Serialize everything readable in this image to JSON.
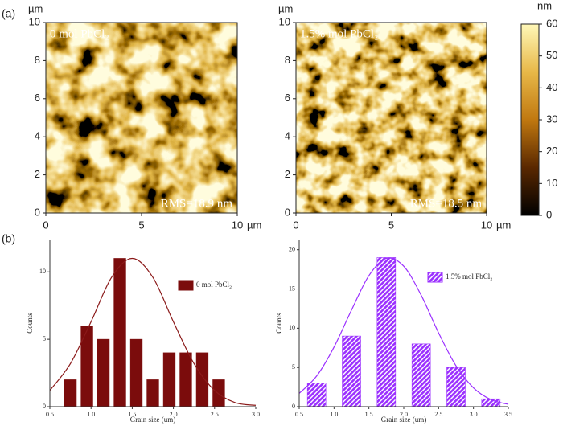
{
  "panel_labels": [
    "(a)",
    "(b)"
  ],
  "afm": [
    {
      "label": "0 mol PbCl₂",
      "rms": "RMS=18.9 nm",
      "unit": "µm",
      "xlim": [
        0,
        10
      ],
      "ylim": [
        0,
        10
      ],
      "xticks": [
        0,
        5,
        10
      ],
      "yticks": [
        0,
        2,
        4,
        6,
        8,
        10
      ]
    },
    {
      "label": "1.5% mol PbCl₂",
      "rms": "RMS=18.5 nm",
      "unit": "µm",
      "xlim": [
        0,
        10
      ],
      "ylim": [
        0,
        10
      ],
      "xticks": [
        0,
        5,
        10
      ],
      "yticks": [
        0,
        2,
        4,
        6,
        8,
        10
      ]
    }
  ],
  "colorbar": {
    "unit": "nm",
    "clim": [
      0,
      60
    ],
    "ticks": [
      0,
      10,
      20,
      30,
      40,
      50,
      60
    ],
    "colormap": [
      "#000000",
      "#5a2800",
      "#c07810",
      "#e8b848",
      "#fff8b8"
    ]
  },
  "chart_data": [
    {
      "type": "histogram",
      "xlabel": "Grain size (um)",
      "ylabel": "Counts",
      "bins": [
        0.65,
        0.85,
        1.05,
        1.25,
        1.45,
        1.65,
        1.85,
        2.05,
        2.25,
        2.45,
        2.65
      ],
      "series": [
        {
          "name": "0 mol PbCl₂",
          "color": "#7b0c0c",
          "values": [
            2,
            6,
            5,
            11,
            5,
            2,
            4,
            4,
            4,
            2
          ]
        }
      ],
      "fit": {
        "color": "#8b1a1a",
        "x": [
          0.5,
          0.75,
          1.0,
          1.25,
          1.5,
          1.75,
          2.0,
          2.25,
          2.5,
          2.75,
          3.0
        ],
        "values": [
          1.2,
          3.2,
          6.3,
          9.6,
          11,
          9.6,
          6.3,
          3.2,
          1.2,
          0.3,
          0.1
        ]
      },
      "xlim": [
        0.5,
        3.0
      ],
      "xticks": [
        0.5,
        {
          "value": 1,
          "label": "1.0"
        },
        1.5,
        {
          "value": 2,
          "label": "2.0"
        },
        2.5,
        {
          "value": 3,
          "label": "3.0"
        }
      ],
      "ylim": [
        0,
        12.4
      ],
      "yticks": [
        0,
        5,
        10
      ],
      "hatch": false
    },
    {
      "type": "histogram",
      "xlabel": "Grain size (um)",
      "ylabel": "Counts",
      "bins": [
        0.5,
        1.0,
        1.5,
        2.0,
        2.5,
        3.0,
        3.5
      ],
      "series": [
        {
          "name": "1.5% mol PbCl₂",
          "color": "#9b30ff",
          "values": [
            3,
            9,
            19,
            8,
            5,
            1
          ]
        }
      ],
      "fit": {
        "color": "#9b30ff",
        "x": [
          0.5,
          0.75,
          1.0,
          1.25,
          1.5,
          1.75,
          2.0,
          2.25,
          2.5,
          2.75,
          3.0,
          3.25,
          3.5
        ],
        "values": [
          1.7,
          3.9,
          7.6,
          12.3,
          16.7,
          18.9,
          17.9,
          14.2,
          9.4,
          5.2,
          2.4,
          0.9,
          0.3
        ]
      },
      "xlim": [
        0.5,
        3.5
      ],
      "xticks": [
        0.5,
        {
          "value": 1,
          "label": "1.0"
        },
        1.5,
        {
          "value": 2,
          "label": "2.0"
        },
        2.5,
        {
          "value": 3,
          "label": "3.0"
        },
        3.5
      ],
      "ylim": [
        0,
        21.3
      ],
      "yticks": [
        0,
        5,
        10,
        15,
        20
      ],
      "hatch": true
    }
  ]
}
